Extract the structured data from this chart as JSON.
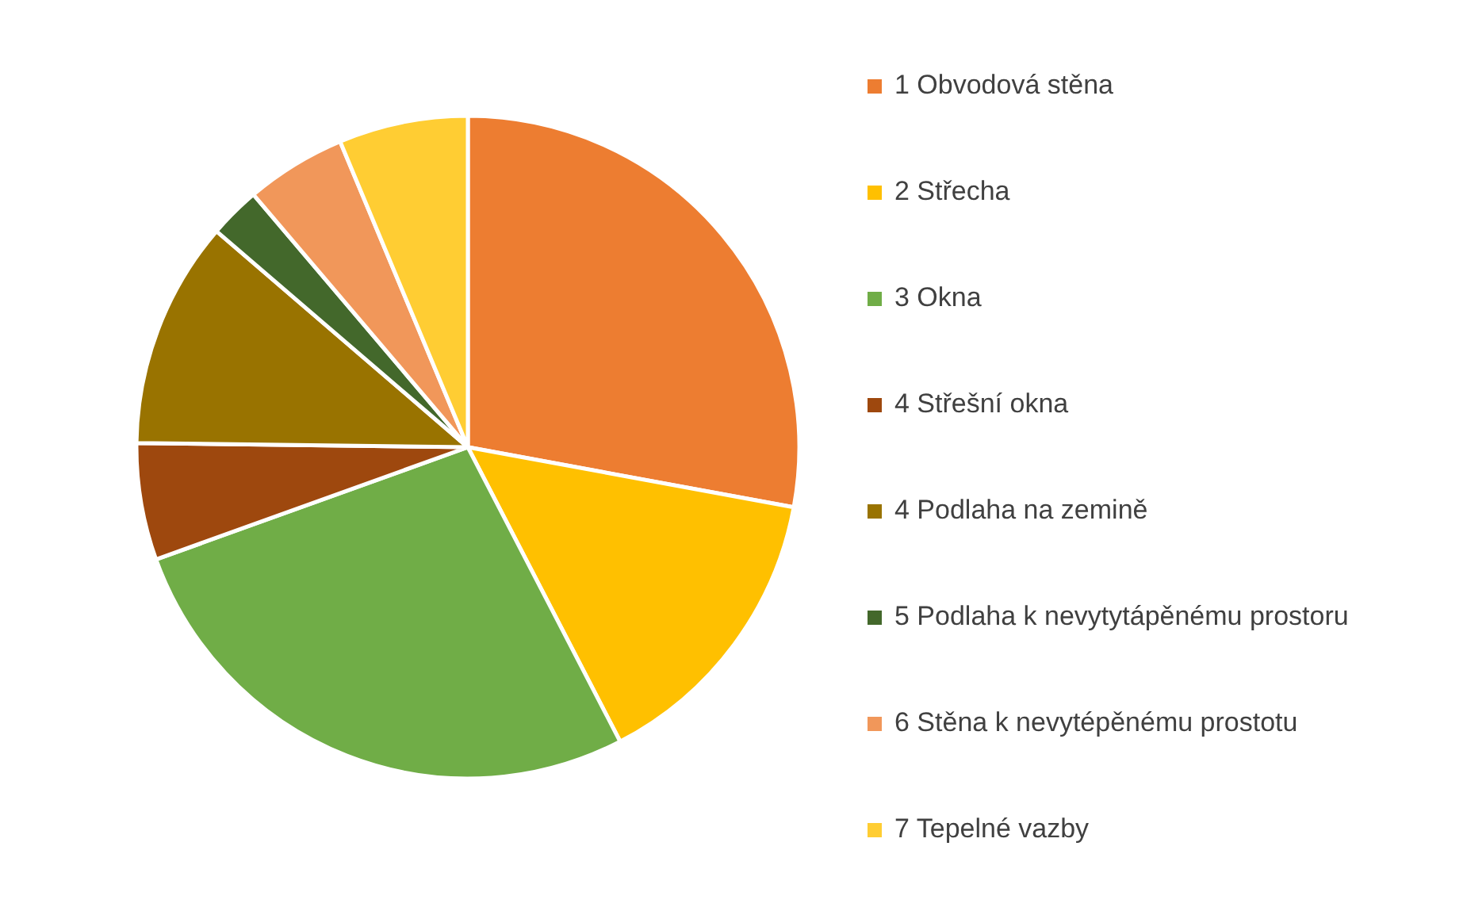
{
  "chart_data": {
    "type": "pie",
    "categories": [
      "1 Obvodová stěna",
      "2 Střecha",
      "3 Okna",
      "4 Střešní okna",
      "4 Podlaha na zemině",
      "5 Podlaha k nevytytápěnému prostoru",
      "6 Stěna k nevytépěnému prostotu",
      "7 Tepelné vazby"
    ],
    "values": [
      27.9,
      14.5,
      27.1,
      5.7,
      11.1,
      2.5,
      4.9,
      6.3
    ],
    "colors": [
      "#ed7d31",
      "#ffc000",
      "#70ad47",
      "#9e480e",
      "#997300",
      "#43682b",
      "#f1975a",
      "#ffcd33"
    ],
    "legend": "right"
  }
}
